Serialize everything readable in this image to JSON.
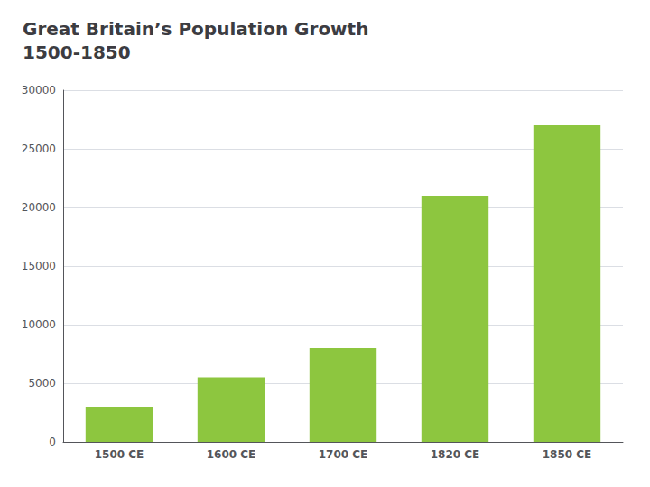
{
  "chart_data": {
    "type": "bar",
    "title": "Great Britain’s Population Growth\n1500-1850",
    "categories": [
      "1500 CE",
      "1600 CE",
      "1700 CE",
      "1820 CE",
      "1850 CE"
    ],
    "values": [
      3000,
      5500,
      8000,
      21000,
      27000
    ],
    "color": "#8DC63F",
    "ylim": [
      0,
      30000
    ],
    "yticks": [
      0,
      5000,
      10000,
      15000,
      20000,
      25000,
      30000
    ],
    "grid": true
  }
}
